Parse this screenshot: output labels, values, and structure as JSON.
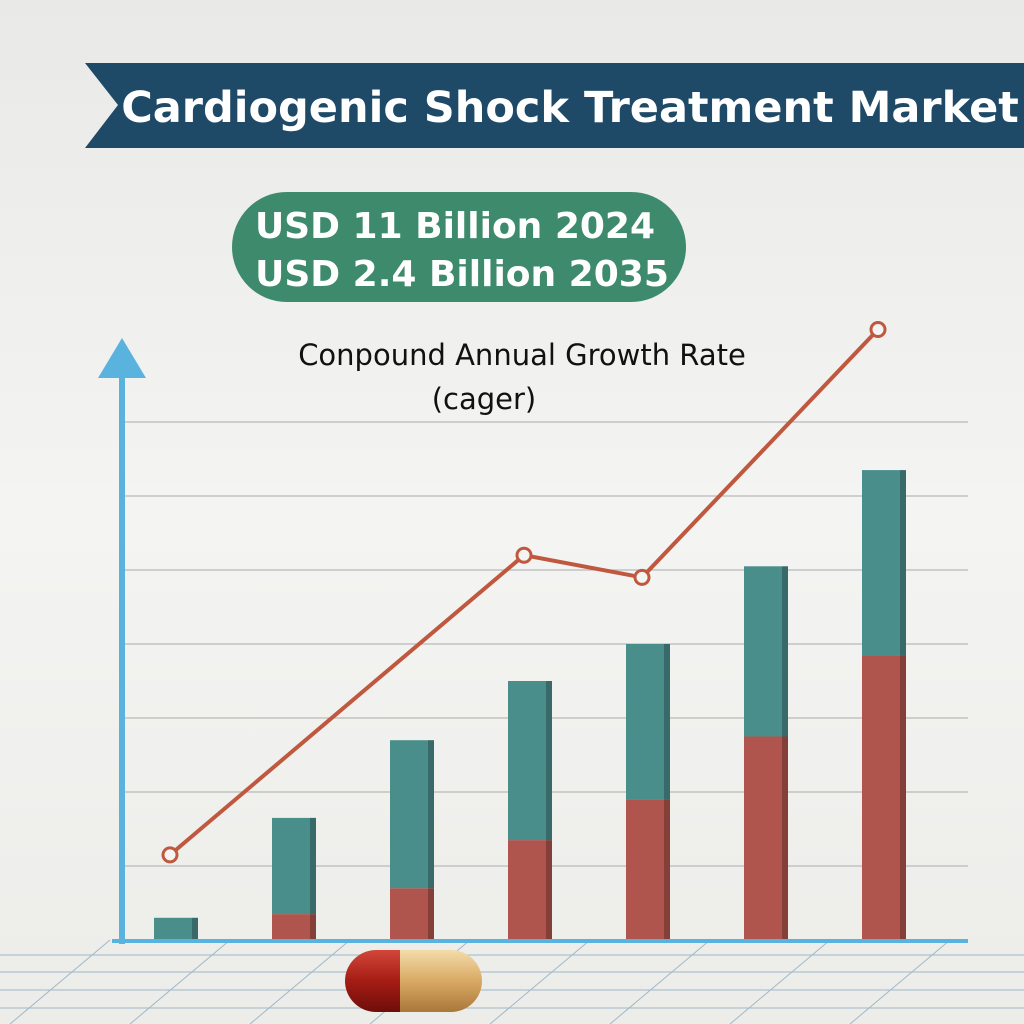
{
  "chart_data": {
    "type": "bar",
    "title": "Cardiogenic Shock Treatment Market",
    "badge_lines": [
      "USD 11 Billion 2024",
      "USD 2.4 Billion 2035"
    ],
    "subtitle_lines": [
      "Conpound Annual Growth Rate",
      "(cager)"
    ],
    "categories": [
      null,
      null,
      null,
      null,
      null,
      null,
      null
    ],
    "series": [
      {
        "color": "#b0554d",
        "values": [
          0,
          0.35,
          0.7,
          1.35,
          1.9,
          2.75,
          3.85
        ]
      },
      {
        "color": "#4a8e8c",
        "values": [
          0.3,
          1.3,
          2.0,
          2.15,
          2.1,
          2.3,
          2.5
        ]
      }
    ],
    "line": {
      "color": "#c0583f",
      "x": [
        0,
        3,
        4,
        6
      ],
      "values": [
        1.15,
        5.2,
        4.9,
        8.25
      ]
    },
    "ylim": [
      0,
      8.5
    ],
    "yticks": [
      0,
      1,
      2,
      3,
      4,
      5,
      6,
      7
    ],
    "grid": true
  }
}
